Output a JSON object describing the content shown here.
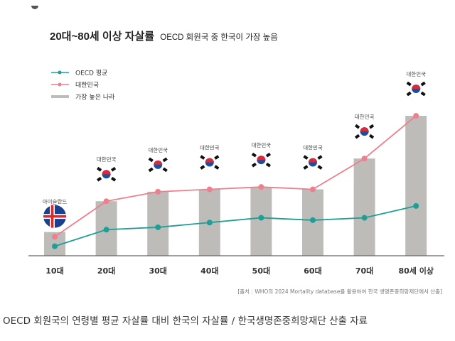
{
  "chart_data": {
    "type": "bar+line",
    "title": "20대~80세 이상 자살률",
    "subtitle": "OECD 회원국 중 한국이 가장 높음",
    "categories": [
      "10대",
      "20대",
      "30대",
      "40대",
      "50대",
      "60대",
      "70대",
      "80세 이상"
    ],
    "series": [
      {
        "name": "OECD 평균",
        "type": "line",
        "color": "#1f9e96",
        "values": [
          4,
          11,
          12,
          14,
          16,
          15,
          16,
          21
        ]
      },
      {
        "name": "대한민국",
        "type": "line",
        "color": "#ee7f8e",
        "values": [
          8,
          23,
          27,
          28,
          29,
          28,
          41,
          59
        ]
      },
      {
        "name": "가장 높은 나라",
        "type": "bar",
        "color": "#bdbcb8",
        "values": [
          10,
          23,
          27,
          28,
          29,
          28,
          41,
          59
        ]
      }
    ],
    "bar_labels": [
      "아이슬란드",
      "대한민국",
      "대한민국",
      "대한민국",
      "대한민국",
      "대한민국",
      "대한민국",
      "대한민국"
    ],
    "bar_flags": [
      "iceland-flag",
      "korea-flag",
      "korea-flag",
      "korea-flag",
      "korea-flag",
      "korea-flag",
      "korea-flag",
      "korea-flag"
    ],
    "legend_position": "top-left",
    "grid": false,
    "ylim": [
      0,
      65
    ],
    "source": "[출처 : WHO의 2024 Mortality database를 활용하여 한국 생명존중희망재단에서 산출]"
  },
  "caption": "OECD 회원국의 연령별 평균 자살률 대비 한국의 자살률 / 한국생명존중희망재단 산출 자료"
}
